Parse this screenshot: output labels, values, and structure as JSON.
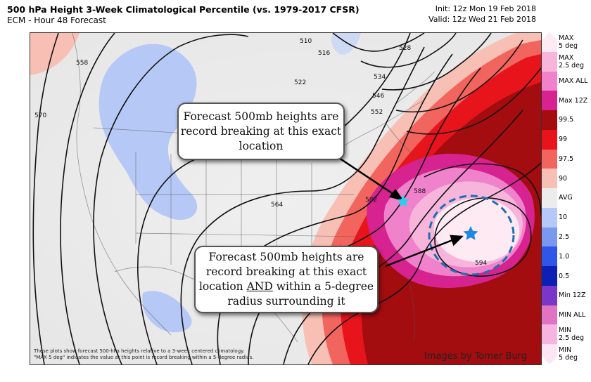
{
  "header": {
    "title": "500 hPa Height 3-Week Climatological Percentile (vs.  1979-2017 CFSR)",
    "subtitle": "ECM - Hour 48 Forecast",
    "init": "Init: 12z Mon 19 Feb 2018",
    "valid": "Valid: 12z Wed 21 Feb 2018"
  },
  "contours": {
    "labels": [
      "510",
      "516",
      "522",
      "528",
      "534",
      "546",
      "552",
      "558",
      "564",
      "570",
      "588",
      "594",
      "582"
    ]
  },
  "callouts": {
    "top": {
      "line1": "Forecast 500mb heights are",
      "line2": "record breaking at this exact",
      "line3": "location"
    },
    "bottom": {
      "line1": "Forecast 500mb heights are",
      "line2": "record breaking at this exact",
      "line3_pre": "location ",
      "line3_em": "AND",
      "line3_post": " within a 5-degree",
      "line4": "radius surrounding it"
    }
  },
  "legend": [
    {
      "label": "MAX\n5 deg",
      "color": "#fdeaf3"
    },
    {
      "label": "MAX\n2.5 deg",
      "color": "#f7b5dc"
    },
    {
      "label": "MAX ALL",
      "color": "#f082cc"
    },
    {
      "label": "Max 12Z",
      "color": "#d6238f"
    },
    {
      "label": "99.5",
      "color": "#a30d10"
    },
    {
      "label": "99",
      "color": "#e8141c"
    },
    {
      "label": "97.5",
      "color": "#f2655e"
    },
    {
      "label": "90",
      "color": "#f8c0b4"
    },
    {
      "label": "AVG",
      "color": "#ececec"
    },
    {
      "label": "10",
      "color": "#b6c8f8"
    },
    {
      "label": "2.5",
      "color": "#7a98ee"
    },
    {
      "label": "1.0",
      "color": "#2f56e6"
    },
    {
      "label": "0.5",
      "color": "#0e1fb3"
    },
    {
      "label": "Min 12Z",
      "color": "#7a36c7"
    },
    {
      "label": "MIN ALL",
      "color": "#e074c2"
    },
    {
      "label": "MIN\n2.5 deg",
      "color": "#f5b5e0"
    },
    {
      "label": "MIN\n5 deg",
      "color": "#fbe6f5"
    }
  ],
  "footer": {
    "note_line1": "These plots show forecast 500-hPa heights relative to a 3-week centered climatology.",
    "note_line2": "\"MAX 5 deg\" indicates the value at this point is record breaking within a 5-degree radius.",
    "credit": "Images by Tomer Burg"
  },
  "markers": {
    "star_color": "#22d3f0",
    "star2_color": "#1e88e5",
    "circle_color": "#1f6fb2"
  }
}
